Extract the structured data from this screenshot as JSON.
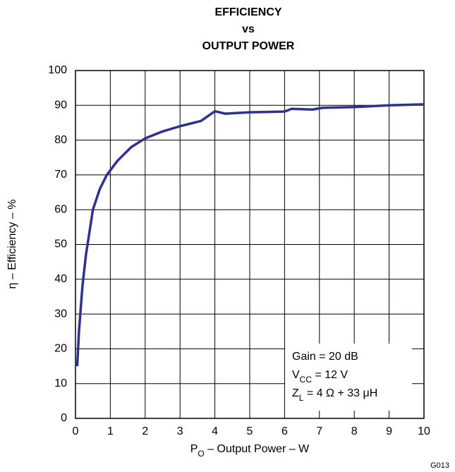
{
  "chart_data": {
    "type": "line",
    "title": [
      "EFFICIENCY",
      "vs",
      "OUTPUT POWER"
    ],
    "x_label": [
      "P",
      "O",
      " – Output Power – W"
    ],
    "y_label": "η – Efficiency – %",
    "annotations": [
      [
        "Gain = 20 dB"
      ],
      [
        "V",
        "CC",
        " = 12 V"
      ],
      [
        "Z",
        "L",
        " = 4 Ω + 33 μH"
      ]
    ],
    "figure_id": "G013",
    "x": [
      0.05,
      0.1,
      0.2,
      0.3,
      0.5,
      0.7,
      0.9,
      1.2,
      1.6,
      2,
      2.5,
      3,
      3.6,
      4,
      4.3,
      5,
      6,
      6.2,
      6.8,
      7.1,
      8,
      9,
      10
    ],
    "series": [
      {
        "color": "#2e3192",
        "values": [
          15,
          25,
          38,
          47,
          60,
          66,
          70,
          74,
          78,
          80.5,
          82.5,
          84,
          85.5,
          88.3,
          87.6,
          88,
          88.2,
          89,
          88.8,
          89.3,
          89.5,
          90,
          90.3
        ]
      }
    ],
    "xlim": [
      0,
      10
    ],
    "ylim": [
      0,
      100
    ],
    "xticks": [
      0,
      1,
      2,
      3,
      4,
      5,
      6,
      7,
      8,
      9,
      10
    ],
    "yticks": [
      0,
      10,
      20,
      30,
      40,
      50,
      60,
      70,
      80,
      90,
      100
    ],
    "grid": true
  }
}
